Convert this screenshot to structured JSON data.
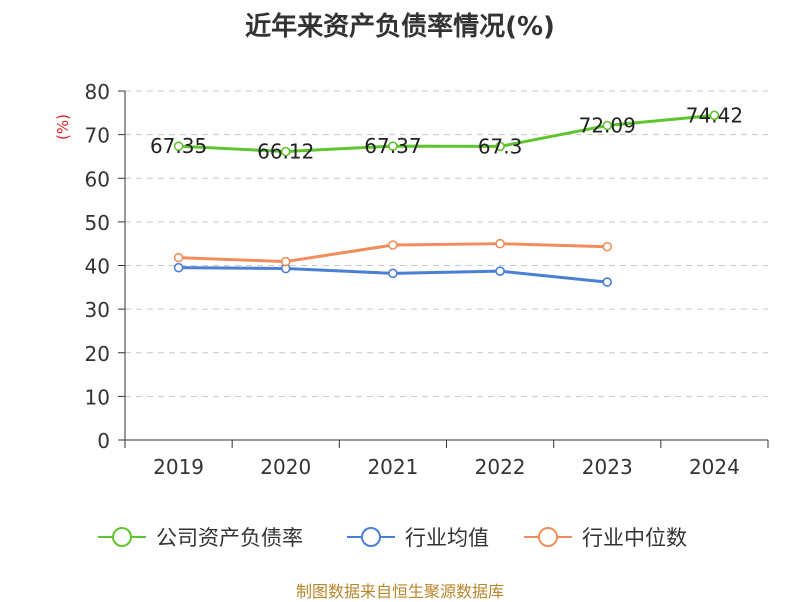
{
  "chart_data": {
    "type": "line",
    "title": "近年来资产负债率情况(%)",
    "ylabel": "(%)",
    "xlabel": "",
    "categories": [
      "2019",
      "2020",
      "2021",
      "2022",
      "2023",
      "2024"
    ],
    "ylim": [
      0,
      80
    ],
    "yticks": [
      0,
      10,
      20,
      30,
      40,
      50,
      60,
      70,
      80
    ],
    "grid": true,
    "legend_position": "bottom",
    "series": [
      {
        "name": "公司资产负债率",
        "color": "#5ec52d",
        "values": [
          67.35,
          66.12,
          67.37,
          67.3,
          72.09,
          74.42
        ],
        "data_labels": [
          "67.35",
          "66.12",
          "67.37",
          "67.3",
          "72.09",
          "74.42"
        ]
      },
      {
        "name": "行业均值",
        "color": "#4a7fd6",
        "values": [
          39.5,
          39.3,
          38.2,
          38.7,
          36.2,
          null
        ]
      },
      {
        "name": "行业中位数",
        "color": "#f28c5a",
        "values": [
          41.8,
          40.9,
          44.7,
          45.0,
          44.3,
          null
        ]
      }
    ]
  },
  "source": "制图数据来自恒生聚源数据库"
}
